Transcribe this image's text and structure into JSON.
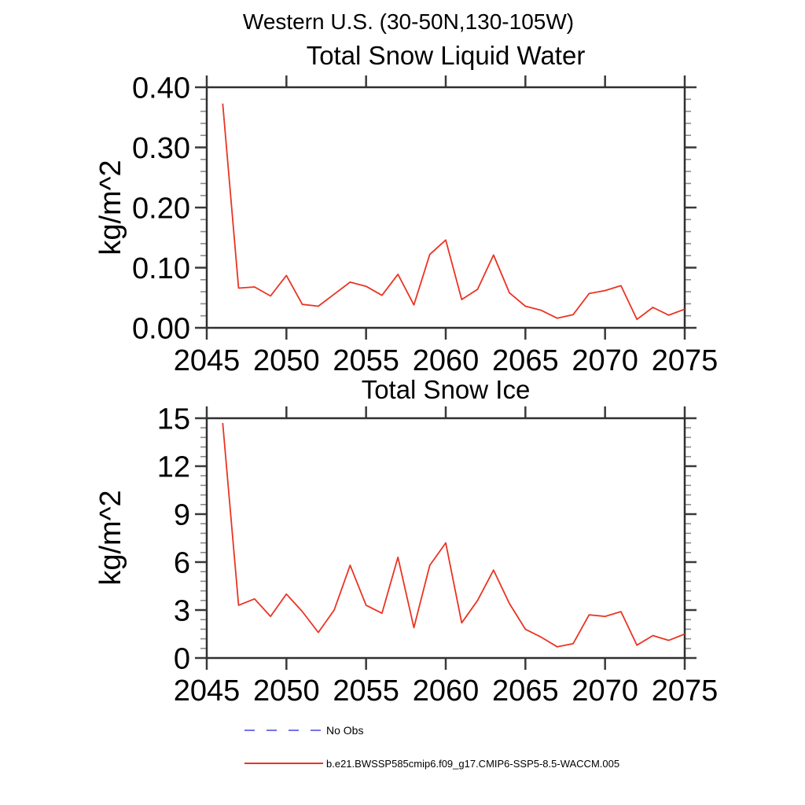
{
  "header": {
    "title": "Western U.S. (30-50N,130-105W)"
  },
  "style": {
    "background": "#ffffff",
    "frame_color": "#303030",
    "major_tick_color": "#3a3a3a",
    "minor_tick_color": "#8a8a8a",
    "text_color": "#000000",
    "series_red": "#ea3423",
    "no_obs_blue": "#7473e8"
  },
  "chart_data": [
    {
      "type": "line",
      "title": "Total Snow Liquid Water",
      "xlabel": "",
      "ylabel": "kg/m^2",
      "xlim": [
        2045,
        2075
      ],
      "ylim": [
        0,
        0.4
      ],
      "grid": false,
      "xticks": [
        2045,
        2050,
        2055,
        2060,
        2065,
        2070,
        2075
      ],
      "xtick_labels": [
        "2045",
        "2050",
        "2055",
        "2060",
        "2065",
        "2070",
        "2075"
      ],
      "yticks": [
        0.0,
        0.1,
        0.2,
        0.3,
        0.4
      ],
      "ytick_labels": [
        "0.00",
        "0.10",
        "0.20",
        "0.30",
        "0.40"
      ],
      "y_minor_step": 0.02,
      "x": [
        2046,
        2047,
        2048,
        2049,
        2050,
        2051,
        2052,
        2053,
        2054,
        2055,
        2056,
        2057,
        2058,
        2059,
        2060,
        2061,
        2062,
        2063,
        2064,
        2065,
        2066,
        2067,
        2068,
        2069,
        2070,
        2071,
        2072,
        2073,
        2074,
        2075
      ],
      "series": [
        {
          "name": "b.e21.BWSSP585cmip6.f09_g17.CMIP6-SSP5-8.5-WACCM.005",
          "color": "#ea3423",
          "values": [
            0.373,
            0.066,
            0.068,
            0.053,
            0.087,
            0.039,
            0.036,
            0.056,
            0.076,
            0.069,
            0.054,
            0.089,
            0.038,
            0.122,
            0.146,
            0.047,
            0.064,
            0.121,
            0.058,
            0.036,
            0.029,
            0.016,
            0.022,
            0.057,
            0.062,
            0.07,
            0.014,
            0.034,
            0.021,
            0.031
          ]
        }
      ]
    },
    {
      "type": "line",
      "title": "Total Snow Ice",
      "xlabel": "",
      "ylabel": "kg/m^2",
      "xlim": [
        2045,
        2075
      ],
      "ylim": [
        0,
        15
      ],
      "grid": false,
      "xticks": [
        2045,
        2050,
        2055,
        2060,
        2065,
        2070,
        2075
      ],
      "xtick_labels": [
        "2045",
        "2050",
        "2055",
        "2060",
        "2065",
        "2070",
        "2075"
      ],
      "yticks": [
        0,
        3,
        6,
        9,
        12,
        15
      ],
      "ytick_labels": [
        "0",
        "3",
        "6",
        "9",
        "12",
        "15"
      ],
      "y_minor_step": 0.6,
      "x": [
        2046,
        2047,
        2048,
        2049,
        2050,
        2051,
        2052,
        2053,
        2054,
        2055,
        2056,
        2057,
        2058,
        2059,
        2060,
        2061,
        2062,
        2063,
        2064,
        2065,
        2066,
        2067,
        2068,
        2069,
        2070,
        2071,
        2072,
        2073,
        2074,
        2075
      ],
      "series": [
        {
          "name": "b.e21.BWSSP585cmip6.f09_g17.CMIP6-SSP5-8.5-WACCM.005",
          "color": "#ea3423",
          "values": [
            14.7,
            3.3,
            3.7,
            2.6,
            4.0,
            2.9,
            1.6,
            3.0,
            5.8,
            3.3,
            2.8,
            6.3,
            1.9,
            5.8,
            7.2,
            2.2,
            3.6,
            5.5,
            3.4,
            1.8,
            1.3,
            0.7,
            0.9,
            2.7,
            2.6,
            2.9,
            0.8,
            1.4,
            1.1,
            1.5
          ]
        }
      ]
    }
  ],
  "legend": {
    "entries": [
      {
        "label": "No Obs",
        "color": "#7473e8",
        "style": "dashed"
      },
      {
        "label": "b.e21.BWSSP585cmip6.f09_g17.CMIP6-SSP5-8.5-WACCM.005",
        "color": "#ea3423",
        "style": "solid"
      }
    ]
  }
}
